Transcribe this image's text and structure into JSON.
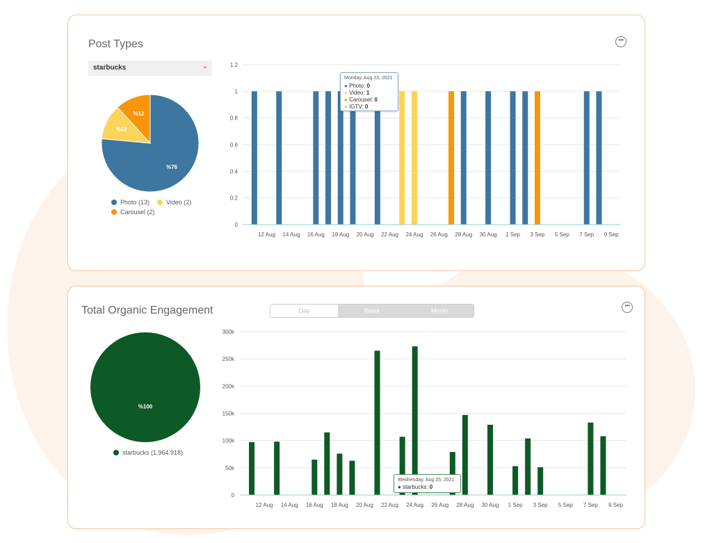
{
  "colors": {
    "photo": "#3c76a1",
    "video": "#fcd45a",
    "carousel": "#f8950b",
    "igtv": "#f7c346",
    "engagement": "#0d5a26",
    "grid": "#e6e6e6",
    "axis": "#8ed3c4",
    "card_border": "#f3c59a"
  },
  "post_types": {
    "title": "Post Types",
    "more_icon": "ellipsis-icon",
    "select_value": "starbucks",
    "chart_data": [
      {
        "type": "pie",
        "slices": [
          {
            "name": "Photo",
            "value": 13,
            "label": "%76",
            "color": "#3c76a1"
          },
          {
            "name": "Video",
            "value": 2,
            "label": "%12",
            "color": "#fcd45a"
          },
          {
            "name": "Carousel",
            "value": 2,
            "label": "%12",
            "color": "#f8950b"
          }
        ],
        "legend": [
          "Photo (13)",
          "Video (2)",
          "Carousel (2)"
        ]
      },
      {
        "type": "bar",
        "x_tick_labels": [
          "12 Aug",
          "14 Aug",
          "16 Aug",
          "18 Aug",
          "20 Aug",
          "22 Aug",
          "24 Aug",
          "26 Aug",
          "28 Aug",
          "30 Aug",
          "1 Sep",
          "3 Sep",
          "5 Sep",
          "7 Sep",
          "9 Sep"
        ],
        "x_dates": [
          "11 Aug",
          "12 Aug",
          "13 Aug",
          "14 Aug",
          "15 Aug",
          "16 Aug",
          "17 Aug",
          "18 Aug",
          "19 Aug",
          "20 Aug",
          "21 Aug",
          "22 Aug",
          "23 Aug",
          "24 Aug",
          "25 Aug",
          "26 Aug",
          "27 Aug",
          "28 Aug",
          "29 Aug",
          "30 Aug",
          "31 Aug",
          "1 Sep",
          "2 Sep",
          "3 Sep",
          "4 Sep",
          "5 Sep",
          "6 Sep",
          "7 Sep",
          "8 Sep",
          "9 Sep"
        ],
        "series": [
          {
            "name": "Photo",
            "color": "#3c76a1",
            "values": [
              1,
              0,
              1,
              0,
              0,
              1,
              1,
              1,
              1,
              0,
              1,
              0,
              0,
              0,
              0,
              0,
              0,
              1,
              0,
              1,
              0,
              1,
              1,
              0,
              0,
              0,
              0,
              1,
              1,
              0
            ]
          },
          {
            "name": "Video",
            "color": "#fcd45a",
            "values": [
              0,
              0,
              0,
              0,
              0,
              0,
              0,
              0,
              0,
              0,
              0,
              0,
              1,
              1,
              0,
              0,
              0,
              0,
              0,
              0,
              0,
              0,
              0,
              0,
              0,
              0,
              0,
              0,
              0,
              0
            ]
          },
          {
            "name": "Carousel",
            "color": "#f8950b",
            "values": [
              0,
              0,
              0,
              0,
              0,
              0,
              0,
              0,
              0,
              0,
              0,
              0,
              0,
              0,
              0,
              0,
              1,
              0,
              0,
              0,
              0,
              0,
              0,
              1,
              0,
              0,
              0,
              0,
              0,
              0
            ]
          },
          {
            "name": "IGTV",
            "color": "#f7c346",
            "values": [
              0,
              0,
              0,
              0,
              0,
              0,
              0,
              0,
              0,
              0,
              0,
              0,
              0,
              0,
              0,
              0,
              0,
              0,
              0,
              0,
              0,
              0,
              0,
              0,
              0,
              0,
              0,
              0,
              0,
              0
            ]
          }
        ],
        "y_ticks": [
          "0",
          "0.2",
          "0.4",
          "0.6",
          "0.8",
          "1",
          "1.2"
        ],
        "ylim": [
          0,
          1.2
        ],
        "grid": true,
        "tooltip": {
          "title": "Monday, Aug 23, 2021",
          "rows": [
            {
              "label": "Photo",
              "value": "0",
              "color": "#3c76a1"
            },
            {
              "label": "Video",
              "value": "1",
              "color": "#fcd45a"
            },
            {
              "label": "Carousel",
              "value": "0",
              "color": "#f8950b"
            },
            {
              "label": "IGTV",
              "value": "0",
              "color": "#f7c346"
            }
          ]
        }
      }
    ]
  },
  "engagement": {
    "title": "Total Organic Engagement",
    "more_icon": "ellipsis-icon",
    "tabs": [
      "Day",
      "Week",
      "Month"
    ],
    "active_tab": "Day",
    "chart_data": [
      {
        "type": "pie",
        "slices": [
          {
            "name": "starbucks",
            "value": 1964918,
            "label": "%100",
            "color": "#0d5a26"
          }
        ],
        "legend": [
          "starbucks (1.964.918)"
        ]
      },
      {
        "type": "bar",
        "x_tick_labels": [
          "12 Aug",
          "14 Aug",
          "16 Aug",
          "18 Aug",
          "20 Aug",
          "22 Aug",
          "24 Aug",
          "26 Aug",
          "28 Aug",
          "30 Aug",
          "1 Sep",
          "3 Sep",
          "5 Sep",
          "7 Sep",
          "9 Sep"
        ],
        "x_dates": [
          "11 Aug",
          "12 Aug",
          "13 Aug",
          "14 Aug",
          "15 Aug",
          "16 Aug",
          "17 Aug",
          "18 Aug",
          "19 Aug",
          "20 Aug",
          "21 Aug",
          "22 Aug",
          "23 Aug",
          "24 Aug",
          "25 Aug",
          "26 Aug",
          "27 Aug",
          "28 Aug",
          "29 Aug",
          "30 Aug",
          "31 Aug",
          "1 Sep",
          "2 Sep",
          "3 Sep",
          "4 Sep",
          "5 Sep",
          "6 Sep",
          "7 Sep",
          "8 Sep",
          "9 Sep"
        ],
        "series": [
          {
            "name": "starbucks",
            "color": "#0d5a26",
            "values": [
              97000,
              0,
              98000,
              0,
              0,
              65000,
              115000,
              76000,
              63000,
              0,
              265000,
              0,
              107000,
              273000,
              0,
              0,
              79000,
              147000,
              0,
              129000,
              0,
              53000,
              104000,
              51000,
              0,
              0,
              0,
              133000,
              108000,
              0
            ]
          }
        ],
        "y_ticks": [
          "0",
          "50k",
          "100k",
          "150k",
          "200k",
          "250k",
          "300k"
        ],
        "ylim": [
          0,
          300000
        ],
        "grid": true,
        "tooltip": {
          "title": "Wednesday, Aug 25, 2021",
          "rows": [
            {
              "label": "starbucks",
              "value": "0",
              "color": "#0d5a26"
            }
          ]
        }
      }
    ]
  }
}
